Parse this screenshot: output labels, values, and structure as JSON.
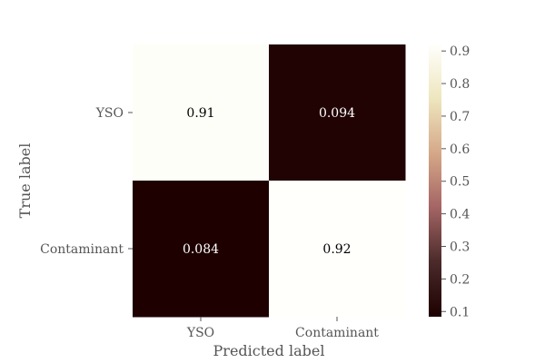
{
  "chart_data": {
    "type": "heatmap",
    "title": "",
    "xlabel": "Predicted label",
    "ylabel": "True label",
    "x_categories": [
      "YSO",
      "Contaminant"
    ],
    "y_categories": [
      "YSO",
      "Contaminant"
    ],
    "values": [
      [
        0.91,
        0.094
      ],
      [
        0.084,
        0.92
      ]
    ],
    "cell_labels": [
      [
        "0.91",
        "0.094"
      ],
      [
        "0.084",
        "0.92"
      ]
    ],
    "colorbar": {
      "range": [
        0.084,
        0.92
      ],
      "ticks": [
        0.1,
        0.2,
        0.3,
        0.4,
        0.5,
        0.6,
        0.7,
        0.8,
        0.9
      ],
      "tick_labels": [
        "0.1",
        "0.2",
        "0.3",
        "0.4",
        "0.5",
        "0.6",
        "0.7",
        "0.8",
        "0.9"
      ]
    },
    "colormap": [
      "#1e0000",
      "#4a2a2a",
      "#a46464",
      "#d5a888",
      "#eee6be",
      "#fffffc"
    ]
  }
}
